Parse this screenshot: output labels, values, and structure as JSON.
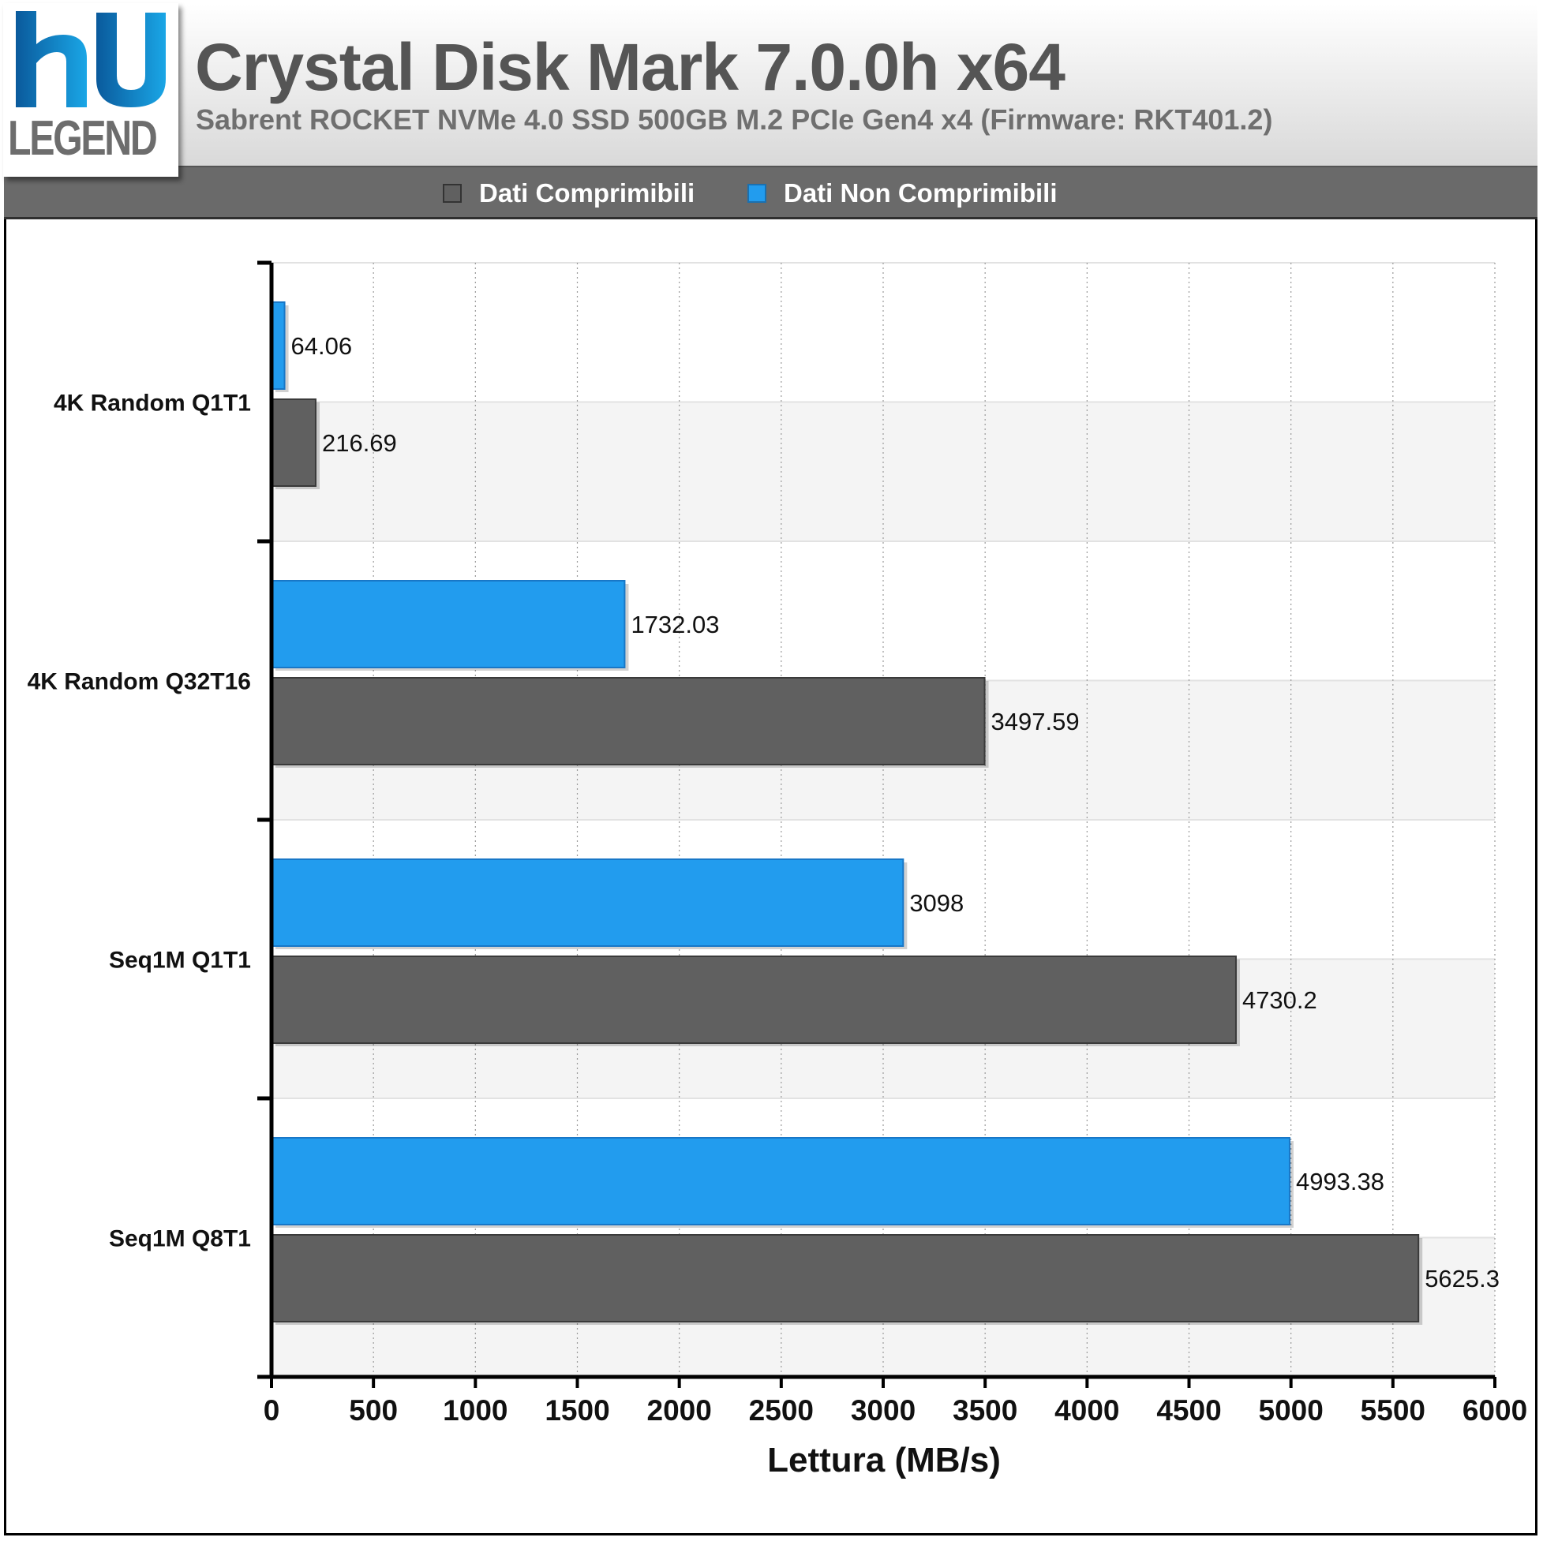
{
  "header": {
    "logo_text": "LEGEND",
    "title": "Crystal Disk Mark 7.0.0h x64",
    "subtitle": "Sabrent ROCKET NVMe 4.0 SSD 500GB M.2 PCIe Gen4 x4 (Firmware: RKT401.2)"
  },
  "legend": {
    "items": [
      {
        "label": "Dati Comprimibili",
        "color": "#606060"
      },
      {
        "label": "Dati Non Comprimibili",
        "color": "#229cee"
      }
    ]
  },
  "colors": {
    "compressible": "#606060",
    "noncompressible": "#229cee",
    "header_bg": "#d9d9d9",
    "legend_bg": "#6a6a6a"
  },
  "chart_data": {
    "type": "bar",
    "orientation": "horizontal",
    "categories": [
      "4K Random Q1T1",
      "4K Random Q32T16",
      "Seq1M Q1T1",
      "Seq1M Q8T1"
    ],
    "series": [
      {
        "name": "Dati Non Comprimibili",
        "values": [
          64.06,
          1732.03,
          3098,
          4993.38
        ],
        "labels": [
          "64.06",
          "1732.03",
          "3098",
          "4993.38"
        ]
      },
      {
        "name": "Dati Comprimibili",
        "values": [
          216.69,
          3497.59,
          4730.2,
          5625.3
        ],
        "labels": [
          "216.69",
          "3497.59",
          "4730.2",
          "5625.3"
        ]
      }
    ],
    "xlabel": "Lettura (MB/s)",
    "ylabel": "",
    "xlim": [
      0,
      6000
    ],
    "xticks": [
      "0",
      "500",
      "1000",
      "1500",
      "2000",
      "2500",
      "3000",
      "3500",
      "4000",
      "4500",
      "5000",
      "5500",
      "6000"
    ],
    "grid": true,
    "legend_position": "top"
  }
}
